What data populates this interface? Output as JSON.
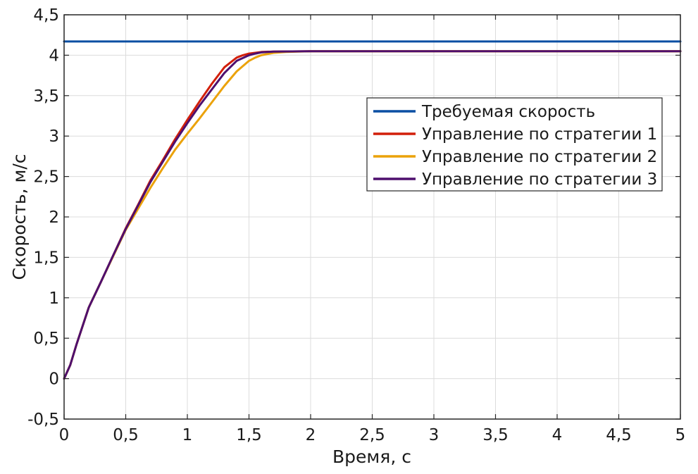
{
  "chart_data": {
    "type": "line",
    "xlabel": "Время, с",
    "ylabel": "Скорость, м/с",
    "xlim": [
      0,
      5
    ],
    "ylim": [
      -0.5,
      4.5
    ],
    "xticks": [
      0,
      0.5,
      1,
      1.5,
      2,
      2.5,
      3,
      3.5,
      4,
      4.5,
      5
    ],
    "yticks": [
      -0.5,
      0,
      0.5,
      1,
      1.5,
      2,
      2.5,
      3,
      3.5,
      4,
      4.5
    ],
    "xtick_labels": [
      "0",
      "0,5",
      "1",
      "1,5",
      "2",
      "2,5",
      "3",
      "3,5",
      "4",
      "4,5",
      "5"
    ],
    "ytick_labels": [
      "-0,5",
      "0",
      "0,5",
      "1",
      "1,5",
      "2",
      "2,5",
      "3",
      "3,5",
      "4",
      "4,5"
    ],
    "grid": true,
    "legend_position": "upper-right",
    "series": [
      {
        "name": "Требуемая скорость",
        "color": "#0a4fa3",
        "x": [
          0,
          5
        ],
        "y": [
          4.17,
          4.17
        ]
      },
      {
        "name": "Управление по стратегии 1",
        "color": "#d21f0a",
        "x": [
          0,
          0.05,
          0.1,
          0.2,
          0.3,
          0.4,
          0.5,
          0.6,
          0.7,
          0.8,
          0.9,
          1.0,
          1.1,
          1.2,
          1.3,
          1.4,
          1.45,
          1.5,
          1.6,
          1.7,
          2.0,
          3.0,
          4.0,
          5.0
        ],
        "y": [
          0,
          0.17,
          0.42,
          0.88,
          1.2,
          1.53,
          1.86,
          2.15,
          2.45,
          2.7,
          2.96,
          3.2,
          3.43,
          3.65,
          3.85,
          3.97,
          4.0,
          4.02,
          4.04,
          4.045,
          4.05,
          4.05,
          4.05,
          4.05
        ]
      },
      {
        "name": "Управление по стратегии 2",
        "color": "#eba20a",
        "x": [
          0,
          0.05,
          0.1,
          0.2,
          0.3,
          0.4,
          0.5,
          0.6,
          0.7,
          0.8,
          0.9,
          1.0,
          1.1,
          1.2,
          1.3,
          1.4,
          1.5,
          1.55,
          1.6,
          1.7,
          1.8,
          2.0,
          3.0,
          4.0,
          5.0
        ],
        "y": [
          0,
          0.17,
          0.42,
          0.88,
          1.2,
          1.52,
          1.84,
          2.1,
          2.36,
          2.6,
          2.83,
          3.03,
          3.22,
          3.42,
          3.62,
          3.8,
          3.93,
          3.97,
          4.0,
          4.03,
          4.04,
          4.05,
          4.05,
          4.05,
          4.05
        ]
      },
      {
        "name": "Управление по стратегии 3",
        "color": "#4e0f6e",
        "x": [
          0,
          0.05,
          0.1,
          0.2,
          0.3,
          0.4,
          0.5,
          0.6,
          0.7,
          0.8,
          0.9,
          1.0,
          1.1,
          1.2,
          1.3,
          1.4,
          1.5,
          1.55,
          1.6,
          1.7,
          2.0,
          3.0,
          4.0,
          5.0
        ],
        "y": [
          0,
          0.17,
          0.42,
          0.88,
          1.2,
          1.53,
          1.85,
          2.14,
          2.43,
          2.68,
          2.93,
          3.16,
          3.38,
          3.58,
          3.78,
          3.93,
          4.0,
          4.02,
          4.035,
          4.045,
          4.05,
          4.05,
          4.05,
          4.05
        ]
      }
    ]
  }
}
